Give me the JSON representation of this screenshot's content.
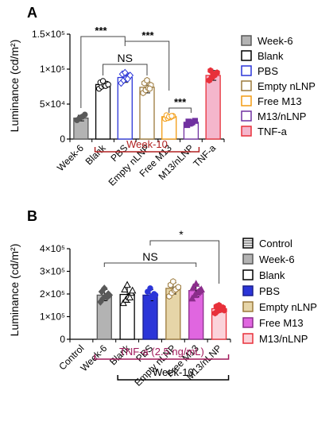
{
  "panels": [
    {
      "label": "A"
    },
    {
      "label": "B"
    }
  ],
  "chart_data": [
    {
      "type": "bar",
      "panel": "A",
      "ylabel": "Luminance (cd/m²)",
      "ylim": [
        0,
        150000
      ],
      "yticks": [
        {
          "value": 0,
          "label": "0"
        },
        {
          "value": 50000,
          "label": "5×10⁴"
        },
        {
          "value": 100000,
          "label": "1×10⁵"
        },
        {
          "value": 150000,
          "label": "1.5×10⁵"
        }
      ],
      "categories": [
        "Week-6",
        "Blank",
        "PBS",
        "Empty nLNP",
        "Free M13",
        "M13/nLNP",
        "TNF-a"
      ],
      "values": [
        30000,
        78000,
        88000,
        74000,
        32000,
        24000,
        91000
      ],
      "errors": [
        4000,
        5000,
        7000,
        8000,
        2500,
        3000,
        7000
      ],
      "points": [
        [
          27000,
          30000,
          32000,
          35000
        ],
        [
          72000,
          75000,
          77000,
          79000,
          81000,
          83000,
          76000,
          78000
        ],
        [
          80000,
          84000,
          87000,
          90000,
          93000,
          95000,
          86000,
          91000
        ],
        [
          66000,
          70000,
          73000,
          77000,
          80000,
          84000,
          72000
        ],
        [
          29000,
          30000,
          31000,
          33000,
          34000,
          32000,
          33000
        ],
        [
          20000,
          22000,
          24000,
          26000,
          25000,
          23000
        ],
        [
          84000,
          88000,
          91000,
          95000,
          98000,
          93000
        ]
      ],
      "series": [
        {
          "name": "Week-6",
          "fill": "#b3b3b3",
          "stroke": "#595959",
          "point": "#595959",
          "marker": "circle"
        },
        {
          "name": "Blank",
          "fill": "#ffffff",
          "stroke": "#000000",
          "point": "#000000",
          "marker": "circle-open"
        },
        {
          "name": "PBS",
          "fill": "#ffffff",
          "stroke": "#2b35d8",
          "point": "#2b35d8",
          "marker": "diamond-open"
        },
        {
          "name": "Empty nLNP",
          "fill": "#ffffff",
          "stroke": "#9c7a3c",
          "point": "#9c7a3c",
          "marker": "hex-open"
        },
        {
          "name": "Free M13",
          "fill": "#ffffff",
          "stroke": "#f39c12",
          "point": "#f39c12",
          "marker": "circle-open"
        },
        {
          "name": "M13/nLNP",
          "fill": "#ffffff",
          "stroke": "#7030a0",
          "point": "#7030a0",
          "marker": "square"
        },
        {
          "name": "TNF-a",
          "fill": "#f4b6cc",
          "stroke": "#e8303a",
          "point": "#e8303a",
          "marker": "hex"
        }
      ],
      "significance": [
        {
          "label": "***"
        },
        {
          "label": "***"
        },
        {
          "label": "NS"
        },
        {
          "label": "***"
        }
      ],
      "group_label": "Week-10",
      "group_color": "#b22222"
    },
    {
      "type": "bar",
      "panel": "B",
      "ylabel": "Luminance (cd/m²)",
      "ylim": [
        0,
        400000
      ],
      "yticks": [
        {
          "value": 0,
          "label": "0"
        },
        {
          "value": 100000,
          "label": "1×10⁵"
        },
        {
          "value": 200000,
          "label": "2×10⁵"
        },
        {
          "value": 300000,
          "label": "3×10⁵"
        },
        {
          "value": 400000,
          "label": "4×10⁵"
        }
      ],
      "categories": [
        "Control",
        "Week-6",
        "Blank",
        "PBS",
        "Empty nLNP",
        "Free M13",
        "M13/nLNP"
      ],
      "values": [
        0,
        195000,
        198000,
        195000,
        225000,
        215000,
        135000
      ],
      "errors": [
        0,
        25000,
        35000,
        25000,
        25000,
        28000,
        15000
      ],
      "points": [
        [],
        [
          165000,
          180000,
          190000,
          200000,
          210000,
          225000,
          185000,
          195000
        ],
        [
          160000,
          175000,
          190000,
          205000,
          220000,
          240000,
          185000,
          215000
        ],
        [
          170000,
          180000,
          190000,
          200000,
          210000,
          225000,
          188000,
          195000
        ],
        [
          190000,
          205000,
          215000,
          225000,
          240000,
          255000,
          220000,
          230000
        ],
        [
          180000,
          195000,
          205000,
          215000,
          230000,
          245000,
          210000,
          220000
        ],
        [
          115000,
          125000,
          130000,
          140000,
          145000,
          150000,
          135000,
          128000
        ]
      ],
      "series": [
        {
          "name": "Control",
          "fill": "#ffffff",
          "stroke": "#000000",
          "point": "#000000",
          "marker": "none",
          "pattern": "hlines"
        },
        {
          "name": "Week-6",
          "fill": "#b3b3b3",
          "stroke": "#595959",
          "point": "#595959",
          "marker": "diamond"
        },
        {
          "name": "Blank",
          "fill": "#ffffff",
          "stroke": "#000000",
          "point": "#000000",
          "marker": "triangle-open"
        },
        {
          "name": "PBS",
          "fill": "#2b35d8",
          "stroke": "#1a1f8c",
          "point": "#2b35d8",
          "marker": "circle"
        },
        {
          "name": "Empty nLNP",
          "fill": "#e6d5a8",
          "stroke": "#9c7a3c",
          "point": "#9c7a3c",
          "marker": "hex-open"
        },
        {
          "name": "Free M13",
          "fill": "#e066e0",
          "stroke": "#8b2d8b",
          "point": "#8b2d8b",
          "marker": "triangle"
        },
        {
          "name": "M13/nLNP",
          "fill": "#fbd3da",
          "stroke": "#e8303a",
          "point": "#e8303a",
          "marker": "hex"
        }
      ],
      "significance": [
        {
          "label": "NS"
        },
        {
          "label": "*"
        }
      ],
      "group_label": "TNF-a (2.5 ng/mL)",
      "group_color": "#a0185a",
      "subgroup_label": "Week-10"
    }
  ]
}
